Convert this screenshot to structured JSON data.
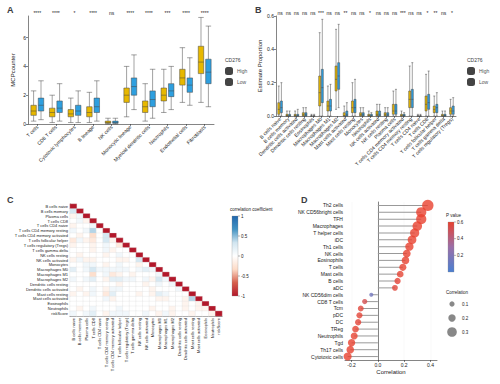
{
  "chart_data": [
    {
      "type": "boxplot",
      "title": "A",
      "y_label": "MCPcounter",
      "legend_title": "CD276",
      "legend": "right",
      "categories": [
        "T cells",
        "CD8 T cells",
        "Cytotoxic lymphocytes",
        "B lineage",
        "NK cells",
        "Monocytic lineage",
        "Myeloid dendritic cells",
        "Neutrophils",
        "Endothelial cells",
        "Fibroblasts"
      ],
      "significance": [
        "****",
        "****",
        "*",
        "****",
        "ns",
        "****",
        "****",
        "***",
        "****",
        "****"
      ],
      "series": [
        {
          "name": "High",
          "color": "#E7B800",
          "values": [
            [
              0.2,
              0.6,
              0.9,
              1.3,
              2.3
            ],
            [
              0.1,
              0.5,
              0.8,
              1.1,
              2.0
            ],
            [
              0.1,
              0.5,
              0.7,
              1.0,
              1.8
            ],
            [
              0.1,
              0.5,
              0.8,
              1.2,
              2.2
            ],
            [
              0,
              0.05,
              0.1,
              0.2,
              0.4
            ],
            [
              0.5,
              1.5,
              2.0,
              2.5,
              4.0
            ],
            [
              0.2,
              0.8,
              1.2,
              1.6,
              2.8
            ],
            [
              0.8,
              1.6,
              2.0,
              2.5,
              3.8
            ],
            [
              1.5,
              2.7,
              3.2,
              3.8,
              5.3
            ],
            [
              1.5,
              3.5,
              4.3,
              5.4,
              7.4
            ]
          ]
        },
        {
          "name": "Low",
          "color": "#2E9FDF",
          "values": [
            [
              0.3,
              0.9,
              1.3,
              1.8,
              3.0
            ],
            [
              0.2,
              0.8,
              1.1,
              1.6,
              2.8
            ],
            [
              0.1,
              0.6,
              0.9,
              1.3,
              2.3
            ],
            [
              0.2,
              0.8,
              1.2,
              1.8,
              3.0
            ],
            [
              0,
              0.05,
              0.1,
              0.2,
              0.4
            ],
            [
              1.0,
              2.0,
              2.6,
              3.2,
              4.8
            ],
            [
              0.4,
              1.2,
              1.7,
              2.3,
              3.8
            ],
            [
              1.0,
              1.9,
              2.3,
              2.8,
              4.0
            ],
            [
              1.3,
              2.2,
              2.7,
              3.2,
              4.6
            ],
            [
              1.2,
              2.8,
              3.6,
              4.5,
              6.8
            ]
          ]
        }
      ],
      "ylim": [
        0,
        7.5
      ],
      "yticks": [
        0,
        2,
        4,
        6
      ]
    },
    {
      "type": "boxplot",
      "title": "B",
      "y_label": "Estimate Proportion",
      "legend_title": "CD276",
      "legend": "right",
      "categories": [
        "B cells naive",
        "B cells memory",
        "Dendritic cells activated",
        "Dendritic cells resting",
        "Eosinophils",
        "Macrophages M0",
        "Macrophages M1",
        "Macrophages M2",
        "Mast cells activated",
        "Mast cells resting",
        "Monocytes",
        "Neutrophils",
        "NK cells activated",
        "NK cells resting",
        "Plasma cells",
        "T cells CD4 memory activated",
        "T cells CD4 memory resting",
        "T cells CD4 naive",
        "T cells CD8",
        "T cells follicular helper",
        "T cells gamma delta",
        "T cells regulatory (Tregs)"
      ],
      "significance": [
        "ns",
        "ns",
        "ns",
        "ns",
        "ns",
        "***",
        "ns",
        "ns",
        "**",
        "ns",
        "ns",
        "*",
        "ns",
        "ns",
        "ns",
        "***",
        "ns",
        "ns",
        "*",
        "**",
        "ns",
        "*"
      ],
      "series": [
        {
          "name": "High",
          "color": "#E7B800",
          "values": [
            [
              0,
              0.01,
              0.04,
              0.08,
              0.18
            ],
            [
              0,
              0,
              0,
              0.01,
              0.03
            ],
            [
              0,
              0,
              0,
              0.01,
              0.03
            ],
            [
              0,
              0,
              0.01,
              0.02,
              0.05
            ],
            [
              0,
              0,
              0,
              0,
              0.01
            ],
            [
              0,
              0.06,
              0.14,
              0.24,
              0.5
            ],
            [
              0,
              0.03,
              0.06,
              0.09,
              0.18
            ],
            [
              0.04,
              0.15,
              0.22,
              0.3,
              0.52
            ],
            [
              0,
              0,
              0,
              0.02,
              0.06
            ],
            [
              0,
              0.02,
              0.05,
              0.09,
              0.2
            ],
            [
              0,
              0,
              0.01,
              0.02,
              0.05
            ],
            [
              0,
              0,
              0,
              0.01,
              0.03
            ],
            [
              0,
              0,
              0.01,
              0.03,
              0.07
            ],
            [
              0,
              0,
              0.01,
              0.02,
              0.05
            ],
            [
              0,
              0.01,
              0.03,
              0.07,
              0.15
            ],
            [
              0,
              0,
              0,
              0.01,
              0.03
            ],
            [
              0,
              0.05,
              0.1,
              0.15,
              0.3
            ],
            [
              0,
              0,
              0,
              0,
              0.01
            ],
            [
              0,
              0.03,
              0.07,
              0.12,
              0.25
            ],
            [
              0,
              0.02,
              0.04,
              0.06,
              0.12
            ],
            [
              0,
              0,
              0,
              0.01,
              0.03
            ],
            [
              0,
              0.01,
              0.03,
              0.05,
              0.1
            ]
          ]
        },
        {
          "name": "Low",
          "color": "#2E9FDF",
          "values": [
            [
              0,
              0.02,
              0.05,
              0.09,
              0.2
            ],
            [
              0,
              0,
              0,
              0.01,
              0.03
            ],
            [
              0,
              0,
              0,
              0.01,
              0.04
            ],
            [
              0,
              0,
              0.01,
              0.02,
              0.05
            ],
            [
              0,
              0,
              0,
              0,
              0.01
            ],
            [
              0,
              0.08,
              0.17,
              0.28,
              0.58
            ],
            [
              0,
              0.03,
              0.06,
              0.1,
              0.19
            ],
            [
              0.05,
              0.16,
              0.24,
              0.32,
              0.55
            ],
            [
              0,
              0,
              0.01,
              0.03,
              0.08
            ],
            [
              0,
              0.02,
              0.05,
              0.1,
              0.22
            ],
            [
              0,
              0,
              0.01,
              0.02,
              0.05
            ],
            [
              0,
              0,
              0,
              0.01,
              0.02
            ],
            [
              0,
              0,
              0.01,
              0.03,
              0.07
            ],
            [
              0,
              0,
              0.01,
              0.02,
              0.05
            ],
            [
              0,
              0.01,
              0.03,
              0.07,
              0.16
            ],
            [
              0,
              0,
              0,
              0.01,
              0.02
            ],
            [
              0,
              0.05,
              0.1,
              0.16,
              0.32
            ],
            [
              0,
              0,
              0,
              0,
              0.01
            ],
            [
              0,
              0.04,
              0.08,
              0.13,
              0.27
            ],
            [
              0,
              0.02,
              0.05,
              0.07,
              0.14
            ],
            [
              0,
              0,
              0,
              0.01,
              0.03
            ],
            [
              0,
              0.01,
              0.03,
              0.06,
              0.11
            ]
          ]
        }
      ],
      "ylim": [
        0,
        0.6
      ],
      "yticks": [
        {
          "value": 0,
          "label": "0.0"
        },
        0.2,
        0.4,
        0.6
      ]
    },
    {
      "type": "heatmap",
      "title": "C",
      "colorbar_title": "correlation coefficient",
      "categories": [
        "B cells naive",
        "B cells memory",
        "Plasma cells",
        "T cells CD8",
        "T cells CD4 naive",
        "T cells CD4 memory resting",
        "T cells CD4 memory activated",
        "T cells follicular helper",
        "T cells regulatory (Tregs)",
        "T cells gamma delta",
        "NK cells resting",
        "NK cells activated",
        "Monocytes",
        "Macrophages M0",
        "Macrophages M1",
        "Macrophages M2",
        "Dendritic cells resting",
        "Dendritic cells activated",
        "Mast cells resting",
        "Mast cells activated",
        "Eosinophils",
        "Neutrophils",
        "riskScore"
      ],
      "matrix": [
        [
          1
        ],
        [
          -0.3,
          1
        ],
        [
          0.1,
          -0.1,
          1
        ],
        [
          0,
          -0.1,
          0.1,
          1
        ],
        [
          0.1,
          0,
          0,
          -0.1,
          1
        ],
        [
          -0.1,
          0,
          -0.1,
          -0.4,
          0,
          1
        ],
        [
          0,
          0.1,
          0,
          0.3,
          0,
          -0.3,
          1
        ],
        [
          0.2,
          -0.1,
          0.1,
          0.2,
          0,
          -0.3,
          0.1,
          1
        ],
        [
          0.1,
          0,
          0,
          0.1,
          0,
          -0.1,
          0,
          0.2,
          1
        ],
        [
          0,
          0,
          0,
          0.1,
          0,
          -0.1,
          0.1,
          0,
          0,
          1
        ],
        [
          0,
          0.1,
          0,
          0,
          0,
          0.1,
          0,
          -0.1,
          0,
          0,
          1
        ],
        [
          0.1,
          -0.1,
          0.1,
          0.1,
          0,
          0,
          0,
          0.1,
          0.1,
          0,
          -0.3,
          1
        ],
        [
          0,
          0,
          -0.1,
          -0.1,
          0,
          0.1,
          0,
          -0.1,
          0,
          0,
          0.1,
          0,
          1
        ],
        [
          -0.2,
          0,
          -0.1,
          -0.3,
          -0.1,
          -0.1,
          -0.1,
          -0.1,
          -0.1,
          0,
          -0.1,
          -0.2,
          -0.1,
          1
        ],
        [
          0,
          0,
          0,
          0.3,
          0,
          -0.1,
          0.2,
          0.1,
          0,
          0.1,
          0,
          0,
          0,
          -0.1,
          1
        ],
        [
          -0.1,
          0,
          -0.1,
          -0.2,
          0,
          0.1,
          -0.2,
          -0.2,
          -0.1,
          -0.1,
          0,
          -0.1,
          0.1,
          -0.3,
          -0.1,
          1
        ],
        [
          0,
          0,
          0,
          0,
          0,
          0,
          0,
          0.1,
          0,
          0,
          0,
          0.1,
          0,
          -0.1,
          0,
          -0.1,
          1
        ],
        [
          0,
          0.1,
          0,
          -0.1,
          0,
          0.1,
          -0.1,
          -0.1,
          0,
          0,
          0,
          0,
          0.1,
          0,
          0,
          0,
          -0.1,
          1
        ],
        [
          0.1,
          0,
          0.1,
          -0.1,
          0,
          0.2,
          -0.2,
          0,
          0,
          0,
          0.1,
          0,
          0.1,
          -0.2,
          -0.1,
          0,
          0,
          0,
          1
        ],
        [
          0,
          0,
          0,
          0,
          0,
          -0.1,
          0.1,
          0,
          0,
          0,
          0,
          0,
          0,
          0.1,
          0.1,
          0,
          0,
          0.1,
          -0.4,
          1
        ],
        [
          0,
          0,
          0,
          0,
          0,
          0,
          0,
          0,
          0,
          0,
          0,
          0,
          0,
          0,
          0,
          0,
          0,
          0.1,
          0,
          0.1,
          1
        ],
        [
          0,
          0.1,
          0,
          -0.1,
          0,
          0,
          0,
          -0.1,
          0,
          0,
          0,
          0,
          0.1,
          0,
          0,
          0.1,
          0,
          0.1,
          0,
          0.1,
          0.1,
          1
        ],
        [
          -0.1,
          0,
          -0.1,
          -0.2,
          0,
          0.1,
          -0.1,
          -0.1,
          -0.1,
          0,
          0,
          -0.1,
          0,
          0.1,
          -0.1,
          0.1,
          0,
          0,
          0.1,
          0,
          0,
          0.1,
          1
        ]
      ],
      "clim": [
        -1,
        1
      ],
      "cticks": [
        -1,
        -0.5,
        0,
        0.5,
        1
      ]
    },
    {
      "type": "lollipop",
      "title": "D",
      "x_label": "Correlation",
      "color_title": "P value",
      "size_title": "Correlation",
      "categories": [
        "Th2 cells",
        "NK CD56bright cells",
        "TFH",
        "Macrophages",
        "T helper cells",
        "iDC",
        "Th1 cells",
        "NK cells",
        "Eosinophils",
        "T cells",
        "Mast cells",
        "B cells",
        "aDC",
        "NK CD56dim cells",
        "CD8 T cells",
        "Tcm",
        "pDC",
        "DC",
        "TReg",
        "Neutrophils",
        "Tgd",
        "Th17 cells",
        "Cytotoxic cells"
      ],
      "values": [
        0.38,
        0.33,
        0.33,
        0.3,
        0.28,
        0.26,
        0.24,
        0.22,
        0.21,
        0.19,
        0.17,
        0.15,
        0.13,
        -0.05,
        -0.1,
        -0.13,
        -0.14,
        -0.15,
        -0.17,
        -0.18,
        -0.2,
        -0.21,
        -0.23
      ],
      "p_values": [
        0.001,
        0.001,
        0.001,
        0.001,
        0.001,
        0.001,
        0.001,
        0.002,
        0.003,
        0.005,
        0.01,
        0.02,
        0.03,
        0.45,
        0.08,
        0.03,
        0.02,
        0.02,
        0.01,
        0.005,
        0.003,
        0.002,
        0.001
      ],
      "p_range": [
        0,
        0.6
      ],
      "pticks": [
        0.2,
        0.4,
        0.6
      ],
      "size_ticks": [
        0.1,
        0.2,
        0.3
      ],
      "xlim": [
        -0.25,
        0.45
      ],
      "xticks": [
        -0.2,
        {
          "value": 0,
          "label": "0.0"
        },
        0.2,
        0.4
      ]
    }
  ]
}
